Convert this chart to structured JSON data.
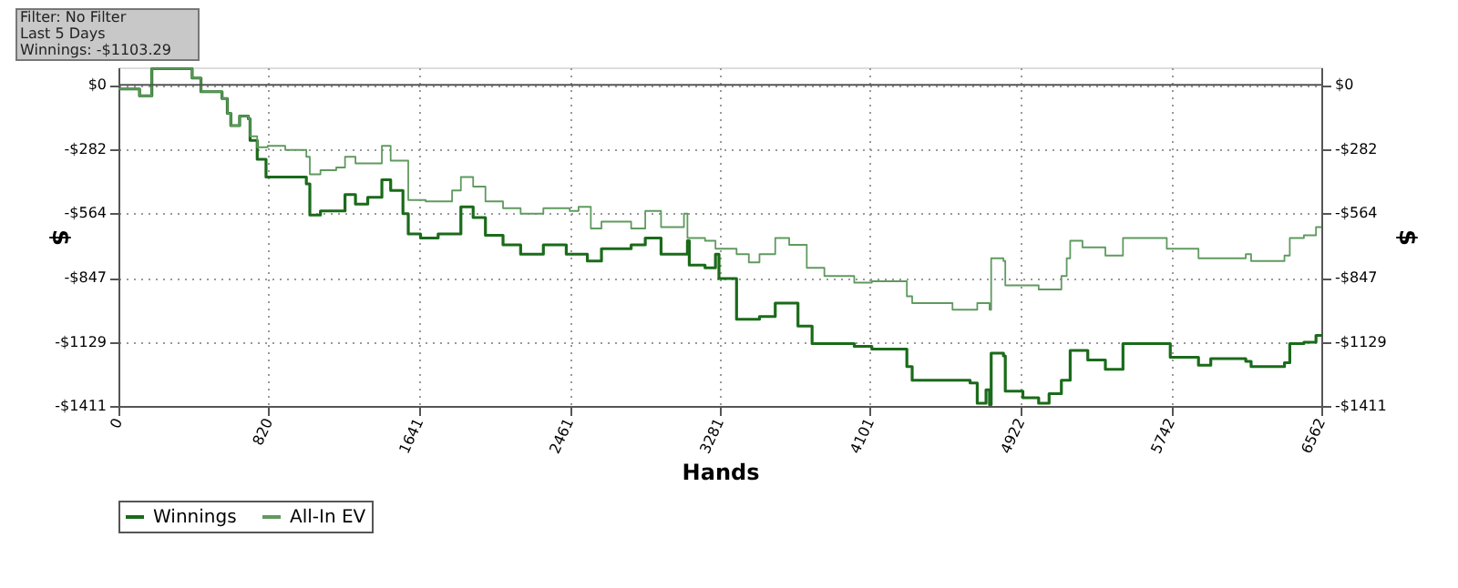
{
  "chart_data": {
    "type": "step",
    "xlabel": "Hands",
    "ylabel": "$",
    "y2label": "$",
    "annotations": [
      "Filter: No Filter",
      "Last 5 Days",
      "Winnings: -$1103.29"
    ],
    "xlim": [
      0,
      6562
    ],
    "xticks": [
      0,
      820,
      1641,
      2461,
      3281,
      4101,
      4922,
      5742,
      6562
    ],
    "ylim": [
      -1411,
      77
    ],
    "yticks": [
      {
        "value": 0,
        "label": "$0"
      },
      {
        "value": -282,
        "label": "-$282"
      },
      {
        "value": -564,
        "label": "-$564"
      },
      {
        "value": -847,
        "label": "-$847"
      },
      {
        "value": -1129,
        "label": "-$1129"
      },
      {
        "value": -1411,
        "label": "-$1411"
      }
    ],
    "y2lim": [
      -1411,
      77
    ],
    "y2ticks": [
      {
        "value": 0,
        "label": "$0"
      },
      {
        "value": -282,
        "label": "-$282"
      },
      {
        "value": -564,
        "label": "-$564"
      },
      {
        "value": -847,
        "label": "-$847"
      },
      {
        "value": -1129,
        "label": "-$1129"
      },
      {
        "value": -1411,
        "label": "-$1411"
      }
    ],
    "ref_lines": [
      {
        "axis": "y",
        "value": 0,
        "color": "#555555"
      }
    ],
    "grid": true,
    "legend": "bottom left",
    "series": [
      {
        "name": "Winnings",
        "color": "#1a6b1a",
        "x": [
          0,
          115,
          182,
          402,
          450,
          565,
          594,
          613,
          661,
          709,
          718,
          757,
          805,
          910,
          1025,
          1044,
          1102,
          1188,
          1236,
          1293,
          1360,
          1437,
          1485,
          1552,
          1581,
          1648,
          1744,
          1868,
          1935,
          2002,
          2098,
          2194,
          2318,
          2443,
          2558,
          2635,
          2797,
          2874,
          2960,
          3104,
          3114,
          3200,
          3257,
          3276,
          3372,
          3497,
          3583,
          3707,
          3784,
          4014,
          4110,
          4301,
          4330,
          4397,
          4646,
          4685,
          4733,
          4752,
          4761,
          4828,
          4838,
          4934,
          5020,
          5077,
          5144,
          5192,
          5288,
          5384,
          5480,
          5671,
          5738,
          5892,
          5959,
          6150,
          6179,
          6361,
          6390,
          6467,
          6533,
          6562
        ],
        "values": [
          -18,
          -48,
          71,
          30,
          -30,
          -60,
          -125,
          -179,
          -137,
          -149,
          -244,
          -327,
          -405,
          -405,
          -435,
          -572,
          -554,
          -554,
          -482,
          -524,
          -494,
          -417,
          -464,
          -566,
          -655,
          -673,
          -655,
          -536,
          -583,
          -661,
          -703,
          -744,
          -703,
          -744,
          -774,
          -720,
          -703,
          -673,
          -744,
          -685,
          -792,
          -804,
          -744,
          -851,
          -1030,
          -1018,
          -959,
          -1060,
          -1137,
          -1149,
          -1161,
          -1238,
          -1298,
          -1298,
          -1310,
          -1399,
          -1340,
          -1405,
          -1179,
          -1191,
          -1346,
          -1375,
          -1399,
          -1357,
          -1298,
          -1167,
          -1209,
          -1250,
          -1137,
          -1137,
          -1197,
          -1232,
          -1203,
          -1215,
          -1238,
          -1221,
          -1137,
          -1131,
          -1101,
          -1103
        ]
      },
      {
        "name": "All-In EV",
        "color": "#5f9a5f",
        "x": [
          0,
          115,
          182,
          402,
          450,
          565,
          594,
          613,
          661,
          709,
          718,
          757,
          814,
          910,
          1025,
          1044,
          1102,
          1188,
          1236,
          1293,
          1360,
          1437,
          1485,
          1581,
          1676,
          1820,
          1868,
          1935,
          2002,
          2098,
          2194,
          2318,
          2462,
          2510,
          2577,
          2635,
          2797,
          2874,
          2960,
          3085,
          3104,
          3200,
          3257,
          3372,
          3439,
          3497,
          3583,
          3659,
          3755,
          3851,
          4014,
          4110,
          4301,
          4330,
          4550,
          4685,
          4752,
          4761,
          4828,
          4838,
          5020,
          5144,
          5173,
          5192,
          5259,
          5384,
          5480,
          5671,
          5719,
          5892,
          6150,
          6179,
          6361,
          6390,
          6467,
          6533,
          6562
        ],
        "values": [
          -18,
          -48,
          71,
          30,
          -30,
          -60,
          -125,
          -179,
          -137,
          -149,
          -226,
          -274,
          -268,
          -286,
          -316,
          -393,
          -375,
          -363,
          -316,
          -345,
          -345,
          -268,
          -333,
          -506,
          -512,
          -464,
          -405,
          -447,
          -512,
          -542,
          -566,
          -542,
          -554,
          -536,
          -631,
          -601,
          -631,
          -554,
          -625,
          -566,
          -673,
          -685,
          -720,
          -744,
          -780,
          -744,
          -673,
          -703,
          -804,
          -840,
          -869,
          -863,
          -929,
          -959,
          -988,
          -959,
          -988,
          -762,
          -774,
          -881,
          -899,
          -840,
          -762,
          -685,
          -714,
          -750,
          -673,
          -673,
          -720,
          -762,
          -744,
          -774,
          -750,
          -673,
          -661,
          -625,
          -625
        ]
      }
    ]
  }
}
